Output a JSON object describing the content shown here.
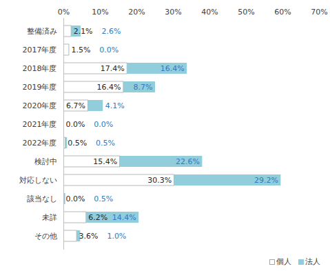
{
  "chart_data": {
    "type": "bar",
    "orientation": "horizontal",
    "stacked": true,
    "data_labels": true,
    "grid": false,
    "legend": "bottom-right",
    "categories": [
      "整備済み",
      "2017年度",
      "2018年度",
      "2019年度",
      "2020年度",
      "2021年度",
      "2022年度",
      "検討中",
      "対応しない",
      "該当なし",
      "未詳",
      "その他"
    ],
    "series": [
      {
        "name": "個人",
        "color": "#ffffff",
        "values": [
          2.1,
          1.5,
          17.4,
          16.4,
          6.7,
          0.0,
          0.5,
          15.4,
          30.3,
          0.0,
          6.2,
          3.6
        ],
        "value_labels": [
          "2.1%",
          "1.5%",
          "17.4%",
          "16.4%",
          "6.7%",
          "0.0%",
          "0.5%",
          "15.4%",
          "30.3%",
          "0.0%",
          "6.2%",
          "3.6%"
        ]
      },
      {
        "name": "法人",
        "color": "#92cddc",
        "values": [
          2.6,
          0.0,
          16.4,
          8.7,
          4.1,
          0.0,
          0.5,
          22.6,
          29.2,
          0.5,
          14.4,
          1.0
        ],
        "value_labels": [
          "2.6%",
          "0.0%",
          "16.4%",
          "8.7%",
          "4.1%",
          "0.0%",
          "0.5%",
          "22.6%",
          "29.2%",
          "0.5%",
          "14.4%",
          "1.0%"
        ]
      }
    ],
    "xlim": [
      0,
      70
    ],
    "xticks": [
      {
        "value": 0,
        "label": "0%"
      },
      {
        "value": 10,
        "label": "10%"
      },
      {
        "value": 20,
        "label": "20%"
      },
      {
        "value": 30,
        "label": "30%"
      },
      {
        "value": 40,
        "label": "40%"
      },
      {
        "value": 50,
        "label": "50%"
      },
      {
        "value": 60,
        "label": "60%"
      },
      {
        "value": 70,
        "label": "70%"
      }
    ]
  }
}
